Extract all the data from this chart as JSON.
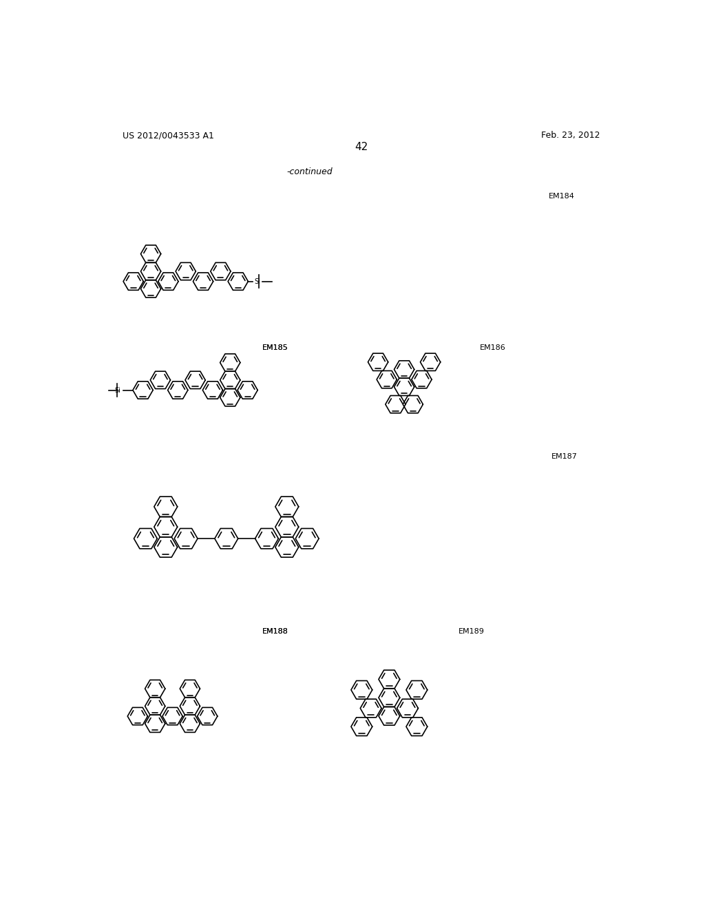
{
  "page_number": "42",
  "patent_number": "US 2012/0043533 A1",
  "date": "Feb. 23, 2012",
  "continued_label": "-continued",
  "background_color": "#ffffff",
  "text_color": "#000000",
  "ring_size": 18,
  "lw": 1.1
}
